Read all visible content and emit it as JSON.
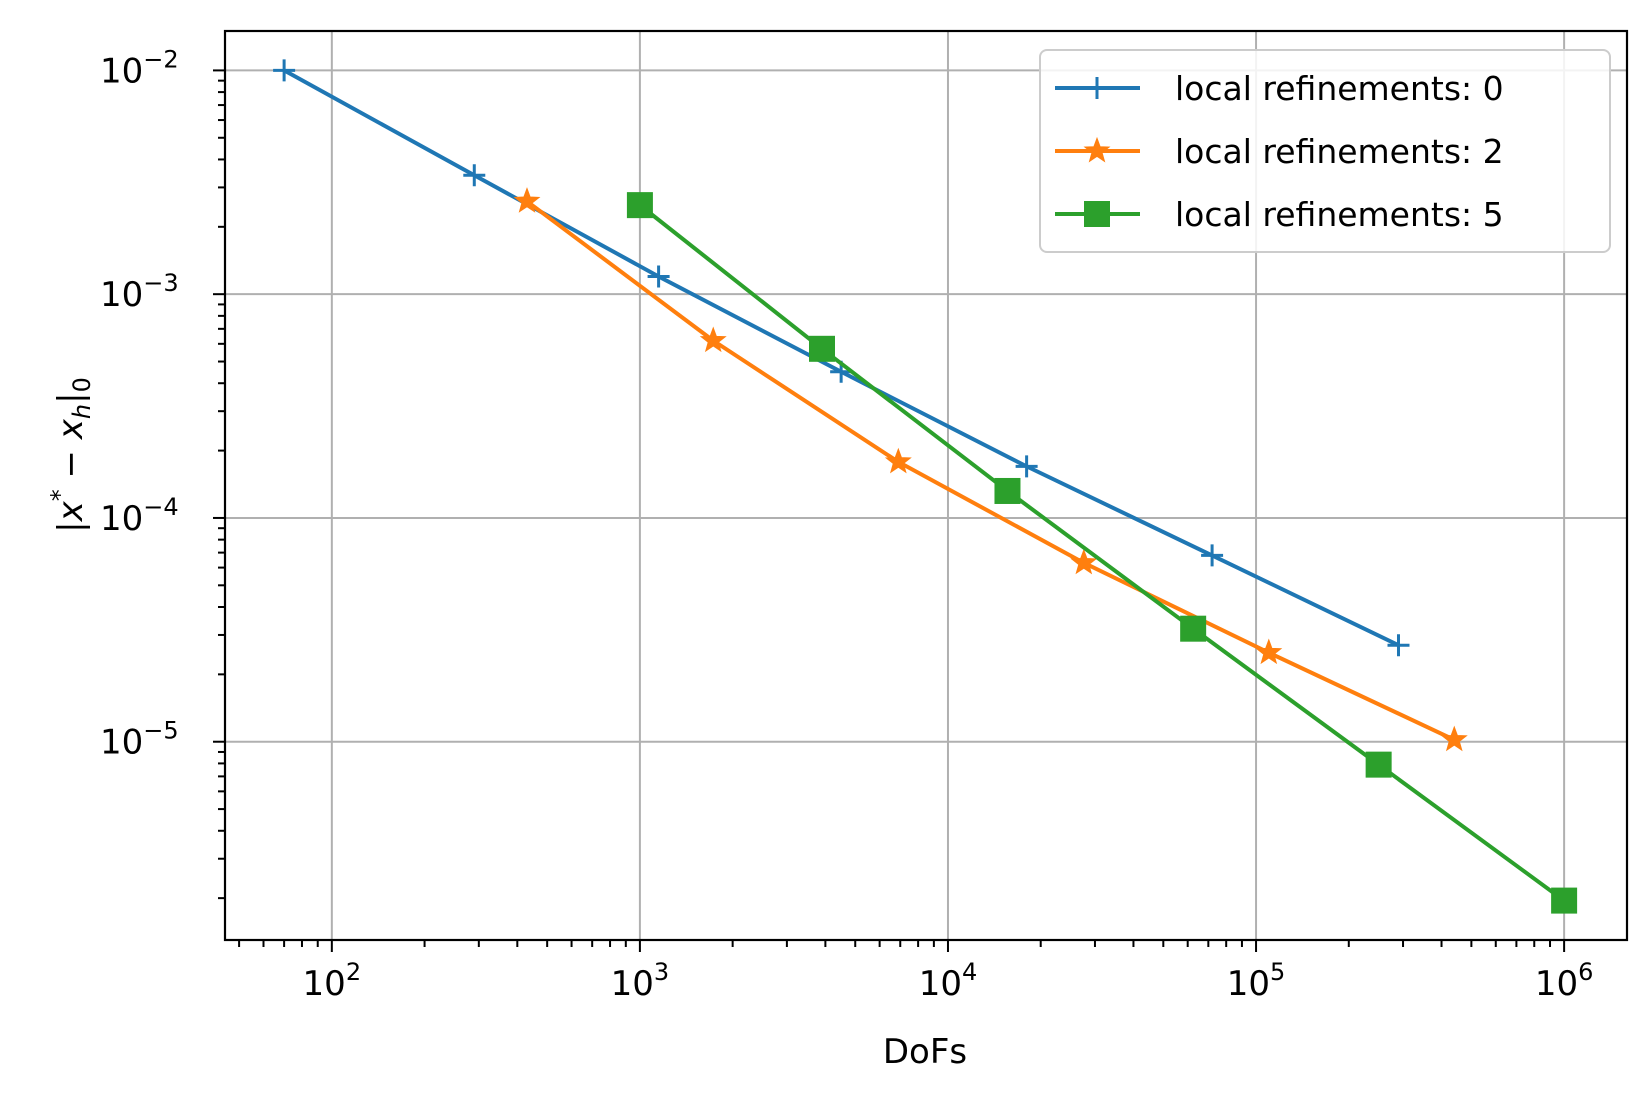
{
  "chart_data": {
    "type": "line",
    "xscale": "log",
    "yscale": "log",
    "xlabel": "DoFs",
    "ylabel": "|x* − x_h|_0",
    "xlim": [
      45,
      1600000
    ],
    "ylim": [
      1.3e-06,
      0.015
    ],
    "grid": true,
    "legend_position": "top-right",
    "x_tick_labels": [
      {
        "value": 100,
        "base": "10",
        "exp": "2"
      },
      {
        "value": 1000,
        "base": "10",
        "exp": "3"
      },
      {
        "value": 10000,
        "base": "10",
        "exp": "4"
      },
      {
        "value": 100000,
        "base": "10",
        "exp": "5"
      },
      {
        "value": 1000000,
        "base": "10",
        "exp": "6"
      }
    ],
    "y_tick_labels": [
      {
        "value": 1e-05,
        "base": "10",
        "exp": "−5"
      },
      {
        "value": 0.0001,
        "base": "10",
        "exp": "−4"
      },
      {
        "value": 0.001,
        "base": "10",
        "exp": "−3"
      },
      {
        "value": 0.01,
        "base": "10",
        "exp": "−2"
      }
    ],
    "series": [
      {
        "name": "local refinements: 0",
        "color": "#1f77b4",
        "marker": "plus",
        "x": [
          70,
          290,
          1150,
          4500,
          18000,
          72000,
          290000
        ],
        "y": [
          0.01,
          0.0034,
          0.0012,
          0.00045,
          0.00017,
          6.8e-05,
          2.7e-05
        ]
      },
      {
        "name": "local refinements: 2",
        "color": "#ff7f0e",
        "marker": "star",
        "x": [
          430,
          1730,
          6900,
          27600,
          110000,
          440000
        ],
        "y": [
          0.0026,
          0.00062,
          0.000178,
          6.3e-05,
          2.5e-05,
          1.02e-05
        ]
      },
      {
        "name": "local refinements: 5",
        "color": "#2ca02c",
        "marker": "square",
        "x": [
          1000,
          3900,
          15600,
          62500,
          250000,
          1000000
        ],
        "y": [
          0.0025,
          0.00057,
          0.000132,
          3.2e-05,
          7.9e-06,
          1.95e-06
        ]
      }
    ]
  }
}
